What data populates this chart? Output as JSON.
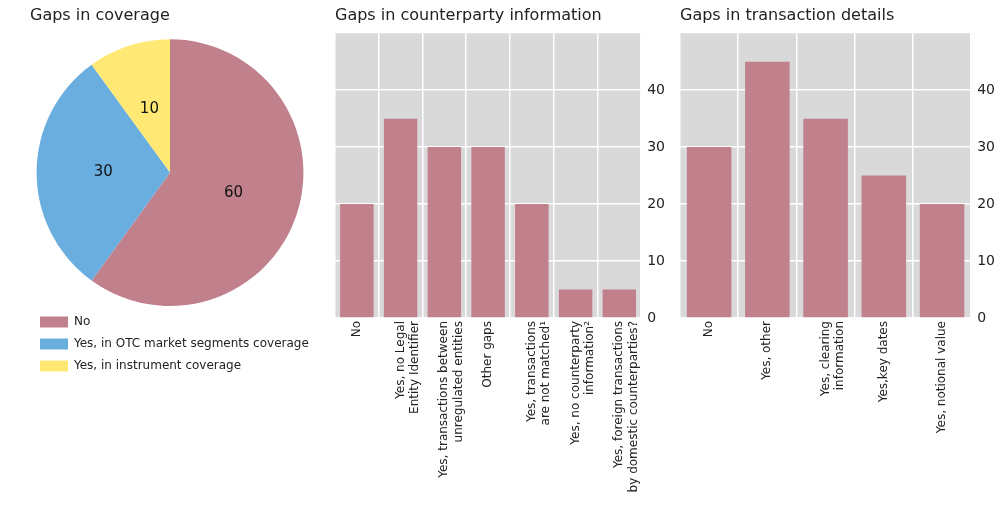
{
  "chart_data": [
    {
      "type": "pie",
      "title": "Gaps in coverage",
      "categories": [
        "No",
        "Yes, in OTC market segments coverage",
        "Yes, in instrument coverage"
      ],
      "values": [
        60,
        30,
        10
      ],
      "colors": [
        "#c0808c",
        "#6aaee0",
        "#ffe873"
      ],
      "data_labels": true,
      "legend": "bottom left"
    },
    {
      "type": "bar",
      "title": "Gaps in counterparty information",
      "categories": [
        "No",
        "Yes, no Legal Entity Identifier",
        "Yes, transactions between unregulated entities",
        "Other gaps",
        "Yes, transactions are not matched¹",
        "Yes, no counterparty information²",
        "Yes, foreign transactions by domestic counterparties?"
      ],
      "values": [
        20,
        35,
        30,
        30,
        20,
        5,
        5
      ],
      "color": "#c0808c",
      "ylim": [
        0,
        50
      ],
      "yticks": [
        0,
        10,
        20,
        30,
        40
      ],
      "grid": true,
      "legend": false
    },
    {
      "type": "bar",
      "title": "Gaps in transaction details",
      "categories": [
        "No",
        "Yes, other",
        "Yes, clearing information",
        "Yes,key dates",
        "Yes, notional value"
      ],
      "values": [
        30,
        45,
        35,
        25,
        20
      ],
      "color": "#c0808c",
      "ylim": [
        0,
        50
      ],
      "yticks": [
        0,
        10,
        20,
        30,
        40
      ],
      "grid": true,
      "legend": false
    }
  ]
}
